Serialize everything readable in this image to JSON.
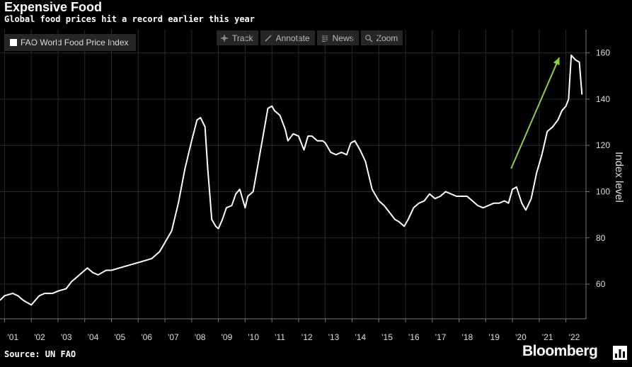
{
  "header": {
    "title": "Expensive Food",
    "subtitle": "Global food prices hit a record earlier this year"
  },
  "toolbar": {
    "track": "Track",
    "annotate": "Annotate",
    "news": "News",
    "zoom": "Zoom"
  },
  "footer": {
    "source": "Source: UN FAO",
    "brand": "Bloomberg"
  },
  "colors": {
    "line": "#ffffff",
    "arrow": "#8fd13a",
    "grid": "#2b2b2b",
    "axis": "#777777"
  },
  "chart_data": {
    "type": "line",
    "title": "Expensive Food",
    "subtitle": "Global food prices hit a record earlier this year",
    "xlabel": "",
    "ylabel": "Index level",
    "xlim": [
      2000.83,
      2022.75
    ],
    "ylim": [
      45,
      170
    ],
    "yticks": [
      60,
      80,
      100,
      120,
      140,
      160
    ],
    "xticks": [
      {
        "value": 2001,
        "label": "'01"
      },
      {
        "value": 2002,
        "label": "'02"
      },
      {
        "value": 2003,
        "label": "'03"
      },
      {
        "value": 2004,
        "label": "'04"
      },
      {
        "value": 2005,
        "label": "'05"
      },
      {
        "value": 2006,
        "label": "'06"
      },
      {
        "value": 2007,
        "label": "'07"
      },
      {
        "value": 2008,
        "label": "'08"
      },
      {
        "value": 2009,
        "label": "'09"
      },
      {
        "value": 2010,
        "label": "'10"
      },
      {
        "value": 2011,
        "label": "'11"
      },
      {
        "value": 2012,
        "label": "'12"
      },
      {
        "value": 2013,
        "label": "'13"
      },
      {
        "value": 2014,
        "label": "'14"
      },
      {
        "value": 2015,
        "label": "'15"
      },
      {
        "value": 2016,
        "label": "'16"
      },
      {
        "value": 2017,
        "label": "'17"
      },
      {
        "value": 2018,
        "label": "'18"
      },
      {
        "value": 2019,
        "label": "'19"
      },
      {
        "value": 2020,
        "label": "'20"
      },
      {
        "value": 2021,
        "label": "'21"
      },
      {
        "value": 2022,
        "label": "'22"
      }
    ],
    "legend": [
      "FAO World Food Price Index"
    ],
    "grid": true,
    "series": [
      {
        "name": "FAO World Food Price Index",
        "x": [
          2000.83,
          2001.0,
          2001.3,
          2001.5,
          2001.7,
          2002.0,
          2002.3,
          2002.5,
          2002.8,
          2003.0,
          2003.3,
          2003.5,
          2003.8,
          2004.1,
          2004.3,
          2004.5,
          2004.8,
          2005.0,
          2005.3,
          2005.6,
          2005.9,
          2006.2,
          2006.5,
          2006.8,
          2007.0,
          2007.25,
          2007.5,
          2007.75,
          2008.0,
          2008.2,
          2008.33,
          2008.5,
          2008.6,
          2008.75,
          2008.9,
          2009.0,
          2009.15,
          2009.3,
          2009.5,
          2009.65,
          2009.8,
          2010.0,
          2010.1,
          2010.3,
          2010.5,
          2010.7,
          2010.85,
          2011.0,
          2011.1,
          2011.3,
          2011.5,
          2011.6,
          2011.8,
          2012.0,
          2012.2,
          2012.35,
          2012.5,
          2012.7,
          2012.9,
          2013.0,
          2013.2,
          2013.4,
          2013.6,
          2013.8,
          2013.95,
          2014.1,
          2014.3,
          2014.5,
          2014.75,
          2015.0,
          2015.2,
          2015.4,
          2015.6,
          2015.75,
          2015.95,
          2016.1,
          2016.3,
          2016.5,
          2016.7,
          2016.9,
          2017.1,
          2017.3,
          2017.5,
          2017.7,
          2017.9,
          2018.1,
          2018.3,
          2018.5,
          2018.7,
          2018.9,
          2019.1,
          2019.3,
          2019.5,
          2019.7,
          2019.85,
          2020.0,
          2020.15,
          2020.35,
          2020.5,
          2020.7,
          2020.9,
          2021.1,
          2021.3,
          2021.5,
          2021.7,
          2021.85,
          2022.0,
          2022.1,
          2022.2,
          2022.35,
          2022.5,
          2022.6
        ],
        "values": [
          53,
          55,
          56,
          55,
          53,
          51,
          55,
          56,
          56,
          57,
          58,
          61,
          64,
          67,
          65,
          64,
          66,
          66,
          67,
          68,
          69,
          70,
          71,
          74,
          78,
          83,
          95,
          110,
          122,
          131,
          132,
          128,
          110,
          88,
          85,
          84,
          88,
          93,
          94,
          99,
          101,
          93,
          98,
          100,
          113,
          126,
          136,
          137,
          135,
          133,
          127,
          122,
          125,
          124,
          118,
          124,
          124,
          122,
          122,
          121,
          117,
          116,
          117,
          116,
          121,
          122,
          118,
          113,
          101,
          96,
          94,
          91,
          88,
          87,
          85,
          88,
          93,
          95,
          96,
          99,
          97,
          98,
          100,
          99,
          98,
          98,
          98,
          96,
          94,
          93,
          94,
          95,
          95,
          96,
          95,
          101,
          102,
          95,
          92,
          97,
          108,
          116,
          126,
          128,
          131,
          135,
          137,
          140,
          159,
          157,
          156,
          142
        ]
      }
    ],
    "annotations": [
      {
        "type": "arrow",
        "from": {
          "x": 2019.95,
          "y": 110
        },
        "to": {
          "x": 2021.75,
          "y": 158
        }
      }
    ]
  }
}
